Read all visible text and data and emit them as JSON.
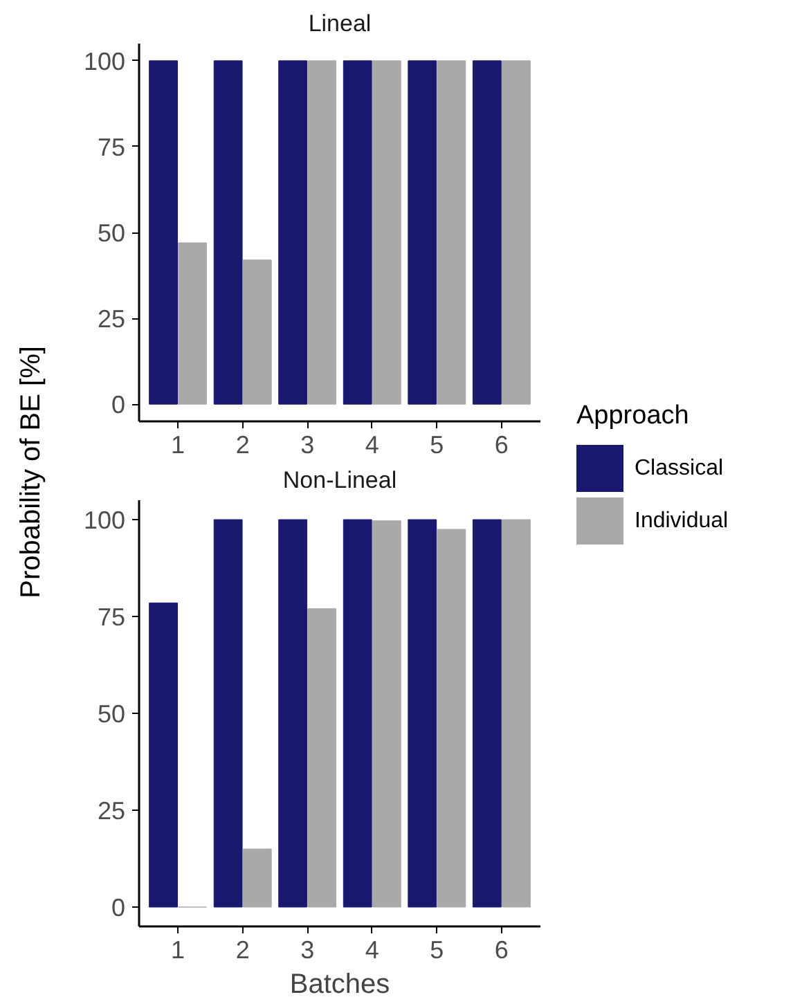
{
  "chart_data": [
    {
      "type": "bar",
      "title": "Lineal",
      "ylabel": "Probability of BE [%]",
      "legend_title": "Approach",
      "legend": "right",
      "grid": false,
      "categories": [
        "1",
        "2",
        "3",
        "4",
        "5",
        "6"
      ],
      "ylim": [
        -5,
        105
      ],
      "yticks": [
        0,
        25,
        50,
        75,
        100
      ],
      "series": [
        {
          "name": "Classical",
          "color": "#191970",
          "values": [
            100,
            100,
            100,
            100,
            100,
            100
          ]
        },
        {
          "name": "Individual",
          "color": "#a9a9a9",
          "values": [
            47,
            42,
            100,
            100,
            100,
            100
          ]
        }
      ]
    },
    {
      "type": "bar",
      "title": "Non-Lineal",
      "xlabel": "Batches",
      "grid": false,
      "categories": [
        "1",
        "2",
        "3",
        "4",
        "5",
        "6"
      ],
      "ylim": [
        -5,
        105
      ],
      "yticks": [
        0,
        25,
        50,
        75,
        100
      ],
      "series": [
        {
          "color": "#191970",
          "values": [
            78.5,
            100,
            100,
            100,
            100,
            100
          ]
        },
        {
          "color": "#a9a9a9",
          "values": [
            0,
            15,
            77,
            99.7,
            97.5,
            100
          ]
        }
      ]
    }
  ]
}
